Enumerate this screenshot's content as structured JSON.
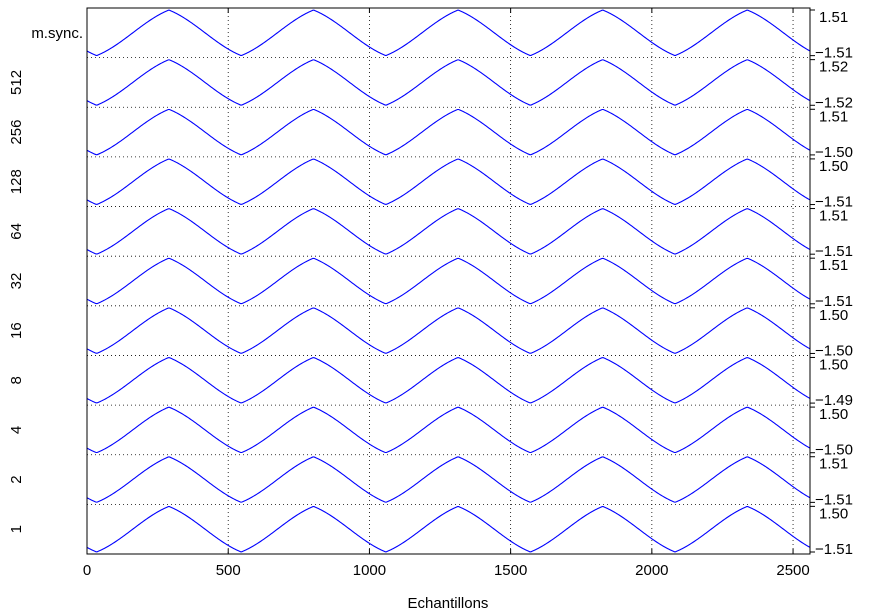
{
  "chart_data": {
    "type": "line",
    "title": "",
    "xlabel": "Echantillons",
    "xlim": [
      0,
      2560
    ],
    "xticks": [
      0,
      500,
      1000,
      1500,
      2000,
      2500
    ],
    "xtick_labels": [
      "0",
      "500",
      "1000",
      "1500",
      "2000",
      "2500"
    ],
    "grid": "dotted",
    "legend": "none",
    "line_color": "#0000ff",
    "signal": {
      "shape": "rounded triangular wave",
      "period": 512,
      "first_peak_x": 290,
      "first_trough_x": 540
    },
    "series": [
      {
        "name": "m.sync.",
        "y_max": "1.51",
        "y_min": "−1.51"
      },
      {
        "name": "512",
        "y_max": "1.52",
        "y_min": "−1.52"
      },
      {
        "name": "256",
        "y_max": "1.51",
        "y_min": "−1.50"
      },
      {
        "name": "128",
        "y_max": "1.50",
        "y_min": "−1.51"
      },
      {
        "name": "64",
        "y_max": "1.51",
        "y_min": "−1.51"
      },
      {
        "name": "32",
        "y_max": "1.51",
        "y_min": "−1.51"
      },
      {
        "name": "16",
        "y_max": "1.50",
        "y_min": "−1.50"
      },
      {
        "name": "8",
        "y_max": "1.50",
        "y_min": "−1.49"
      },
      {
        "name": "4",
        "y_max": "1.50",
        "y_min": "−1.50"
      },
      {
        "name": "2",
        "y_max": "1.51",
        "y_min": "−1.51"
      },
      {
        "name": "1",
        "y_max": "1.50",
        "y_min": "−1.51"
      }
    ]
  }
}
